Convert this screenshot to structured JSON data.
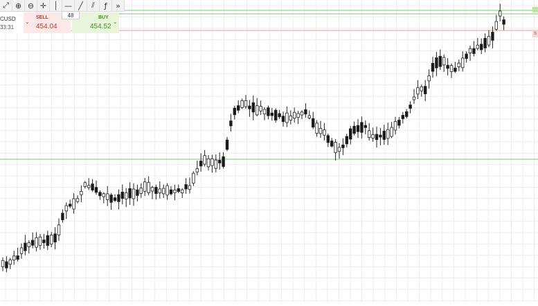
{
  "toolbar": {
    "tools": [
      {
        "name": "crosshair-chart-icon",
        "glyph": "⤢"
      },
      {
        "name": "zoom-in-icon",
        "glyph": "⊕"
      },
      {
        "name": "zoom-out-icon",
        "glyph": "⊖"
      },
      {
        "name": "crosshair-icon",
        "glyph": "✛"
      },
      {
        "name": "vertical-line-icon",
        "glyph": "│"
      },
      {
        "name": "horizontal-line-icon",
        "glyph": "—"
      },
      {
        "name": "trend-line-icon",
        "glyph": "╱"
      },
      {
        "name": "channel-icon",
        "glyph": "⫽"
      },
      {
        "name": "fibonacci-icon",
        "glyph": "ƒ"
      },
      {
        "name": "more-tools-icon",
        "glyph": "»"
      }
    ]
  },
  "ticket": {
    "symbol": "CUSD",
    "time": "33:31",
    "sell_label": "SELL",
    "sell_price": "454.04",
    "buy_label": "BUY",
    "buy_price": "454.52",
    "lot_value": "48"
  },
  "colors": {
    "bull": "#ffffff",
    "bear": "#1a1a1a",
    "support_line": "#7cc576",
    "sell_line": "#e89a9a",
    "grid": "#ececec"
  }
}
